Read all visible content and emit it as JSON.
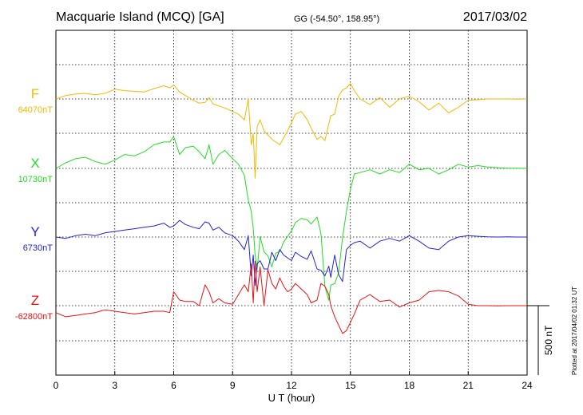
{
  "header": {
    "station": "Macquarie Island (MCQ)  [GA]",
    "coords": "GG (-54.50°, 158.95°)",
    "date": "2017/03/02"
  },
  "footer": {
    "plotted": "Plotted at 2017/04/02 01:32 UT"
  },
  "chart_data": {
    "type": "line",
    "title": "Macquarie Island (MCQ)  [GA]",
    "xlabel": "U T (hour)",
    "ylabel": "",
    "xlim": [
      0,
      24
    ],
    "xticks": [
      "0",
      "3",
      "6",
      "9",
      "12",
      "15",
      "18",
      "21",
      "24"
    ],
    "grid": true,
    "scale_bar": {
      "value": 500,
      "label": "500 nT"
    },
    "series": [
      {
        "name": "F",
        "baseline_label": "64070nT",
        "baseline": 64070,
        "color": "#f5b800",
        "x": [
          0,
          0.5,
          1,
          1.5,
          2,
          2.5,
          3,
          3.5,
          4,
          4.5,
          5,
          5.5,
          5.8,
          6,
          6.3,
          6.6,
          7,
          7.3,
          7.6,
          7.8,
          8,
          8.3,
          8.6,
          9,
          9.3,
          9.6,
          9.8,
          9.95,
          10.05,
          10.15,
          10.25,
          10.4,
          10.6,
          10.8,
          11,
          11.2,
          11.4,
          11.6,
          11.8,
          12,
          12.2,
          12.5,
          12.8,
          13,
          13.3,
          13.5,
          13.7,
          13.9,
          14,
          14.2,
          14.4,
          14.6,
          14.8,
          15,
          15.2,
          15.5,
          16,
          16.5,
          17,
          17.5,
          18,
          18.5,
          19,
          19.5,
          20,
          20.5,
          21,
          21.5,
          22,
          22.5,
          23,
          23.5,
          24
        ],
        "values": [
          64070,
          64095,
          64105,
          64110,
          64100,
          64110,
          64140,
          64130,
          64125,
          64120,
          64145,
          64165,
          64150,
          64170,
          64120,
          64095,
          64060,
          64040,
          64045,
          64080,
          64035,
          64020,
          64005,
          63980,
          63960,
          63920,
          64070,
          63740,
          63820,
          63500,
          63870,
          63920,
          63840,
          63810,
          63780,
          63760,
          63740,
          63790,
          63840,
          63900,
          63960,
          63980,
          63920,
          63860,
          63780,
          63800,
          63770,
          63890,
          63950,
          63960,
          64090,
          64135,
          64150,
          64180,
          64130,
          64070,
          64030,
          64080,
          64010,
          64070,
          64090,
          64050,
          63990,
          64040,
          63970,
          64010,
          64060,
          64065,
          64070,
          64070,
          64070,
          64068,
          64070
        ]
      },
      {
        "name": "X",
        "baseline_label": "10730nT",
        "baseline": 10730,
        "color": "#22dd22",
        "x": [
          0,
          0.5,
          1,
          1.5,
          2,
          2.5,
          3,
          3.5,
          4,
          4.5,
          5,
          5.5,
          5.8,
          6,
          6.3,
          6.6,
          7,
          7.3,
          7.6,
          7.8,
          8,
          8.3,
          8.6,
          9,
          9.3,
          9.6,
          9.8,
          9.95,
          10.05,
          10.15,
          10.25,
          10.4,
          10.6,
          10.8,
          11,
          11.2,
          11.4,
          11.6,
          11.8,
          12,
          12.2,
          12.5,
          12.8,
          13,
          13.3,
          13.5,
          13.7,
          13.9,
          14,
          14.2,
          14.4,
          14.6,
          14.8,
          15,
          15.2,
          15.5,
          16,
          16.5,
          17,
          17.5,
          18,
          18.5,
          19,
          19.5,
          20,
          20.5,
          21,
          21.5,
          22,
          22.5,
          23,
          23.5,
          24
        ],
        "values": [
          10730,
          10770,
          10800,
          10810,
          10780,
          10760,
          10790,
          10830,
          10820,
          10850,
          10900,
          10920,
          10920,
          10960,
          10830,
          10880,
          10890,
          10850,
          10800,
          10900,
          10760,
          10830,
          10860,
          10800,
          10760,
          10680,
          10500,
          10420,
          10300,
          10100,
          10000,
          10240,
          10130,
          10100,
          10020,
          10120,
          10130,
          10200,
          10240,
          10280,
          10340,
          10370,
          10360,
          10330,
          10380,
          10260,
          9880,
          9780,
          9890,
          9900,
          9980,
          10230,
          10420,
          10580,
          10690,
          10700,
          10720,
          10690,
          10720,
          10700,
          10760,
          10720,
          10730,
          10690,
          10720,
          10760,
          10740,
          10750,
          10740,
          10735,
          10732,
          10731,
          10730
        ]
      },
      {
        "name": "Y",
        "baseline_label": "6730nT",
        "baseline": 6730,
        "color": "#2222dd",
        "x": [
          0,
          0.5,
          1,
          1.5,
          2,
          2.5,
          3,
          3.5,
          4,
          4.5,
          5,
          5.5,
          5.8,
          6,
          6.3,
          6.6,
          7,
          7.3,
          7.6,
          7.8,
          8,
          8.3,
          8.6,
          9,
          9.3,
          9.6,
          9.8,
          9.95,
          10.05,
          10.15,
          10.25,
          10.4,
          10.6,
          10.8,
          11,
          11.2,
          11.4,
          11.6,
          11.8,
          12,
          12.2,
          12.5,
          12.8,
          13,
          13.3,
          13.5,
          13.7,
          13.9,
          14,
          14.2,
          14.4,
          14.6,
          14.8,
          15,
          15.2,
          15.5,
          16,
          16.5,
          17,
          17.5,
          18,
          18.5,
          19,
          19.5,
          20,
          20.5,
          21,
          21.5,
          22,
          22.5,
          23,
          23.5,
          24
        ],
        "values": [
          6730,
          6720,
          6740,
          6750,
          6740,
          6760,
          6770,
          6780,
          6790,
          6800,
          6810,
          6830,
          6800,
          6810,
          6850,
          6820,
          6800,
          6790,
          6840,
          6830,
          6780,
          6800,
          6760,
          6740,
          6700,
          6640,
          6740,
          6450,
          6600,
          6380,
          6540,
          6560,
          6500,
          6500,
          6620,
          6560,
          6640,
          6600,
          6580,
          6560,
          6620,
          6590,
          6570,
          6630,
          6500,
          6490,
          6450,
          6520,
          6440,
          6600,
          6460,
          6410,
          6640,
          6670,
          6690,
          6700,
          6650,
          6700,
          6720,
          6700,
          6740,
          6700,
          6650,
          6640,
          6700,
          6730,
          6740,
          6735,
          6732,
          6730,
          6732,
          6730,
          6730
        ]
      },
      {
        "name": "Z",
        "baseline_label": "-62800nT",
        "baseline": -62800,
        "color": "#ee1111",
        "x": [
          0,
          0.5,
          1,
          1.5,
          2,
          2.5,
          3,
          3.5,
          4,
          4.5,
          5,
          5.5,
          5.8,
          6,
          6.3,
          6.6,
          7,
          7.3,
          7.6,
          7.8,
          8,
          8.3,
          8.6,
          9,
          9.3,
          9.6,
          9.8,
          9.95,
          10.05,
          10.15,
          10.25,
          10.4,
          10.6,
          10.8,
          11,
          11.2,
          11.4,
          11.6,
          11.8,
          12,
          12.2,
          12.5,
          12.8,
          13,
          13.3,
          13.5,
          13.7,
          13.9,
          14,
          14.2,
          14.4,
          14.6,
          14.8,
          15,
          15.2,
          15.5,
          16,
          16.5,
          17,
          17.5,
          18,
          18.5,
          19,
          19.5,
          20,
          20.5,
          21,
          21.5,
          22,
          22.5,
          23,
          23.5,
          24
        ],
        "values": [
          -62850,
          -62880,
          -62870,
          -62860,
          -62850,
          -62830,
          -62840,
          -62850,
          -62860,
          -62850,
          -62840,
          -62840,
          -62850,
          -62700,
          -62760,
          -62770,
          -62770,
          -62800,
          -62650,
          -62700,
          -62780,
          -62750,
          -62780,
          -62790,
          -62720,
          -62650,
          -62700,
          -62500,
          -62780,
          -62480,
          -62700,
          -62520,
          -62800,
          -62540,
          -62640,
          -62680,
          -62600,
          -62660,
          -62700,
          -62680,
          -62640,
          -62680,
          -62720,
          -62780,
          -62760,
          -62640,
          -62660,
          -62720,
          -62800,
          -62880,
          -62940,
          -63000,
          -62980,
          -62920,
          -62860,
          -62760,
          -62720,
          -62770,
          -62760,
          -62810,
          -62780,
          -62760,
          -62700,
          -62690,
          -62700,
          -62730,
          -62790,
          -62800,
          -62800,
          -62802,
          -62800,
          -62800,
          -62800
        ]
      }
    ]
  }
}
